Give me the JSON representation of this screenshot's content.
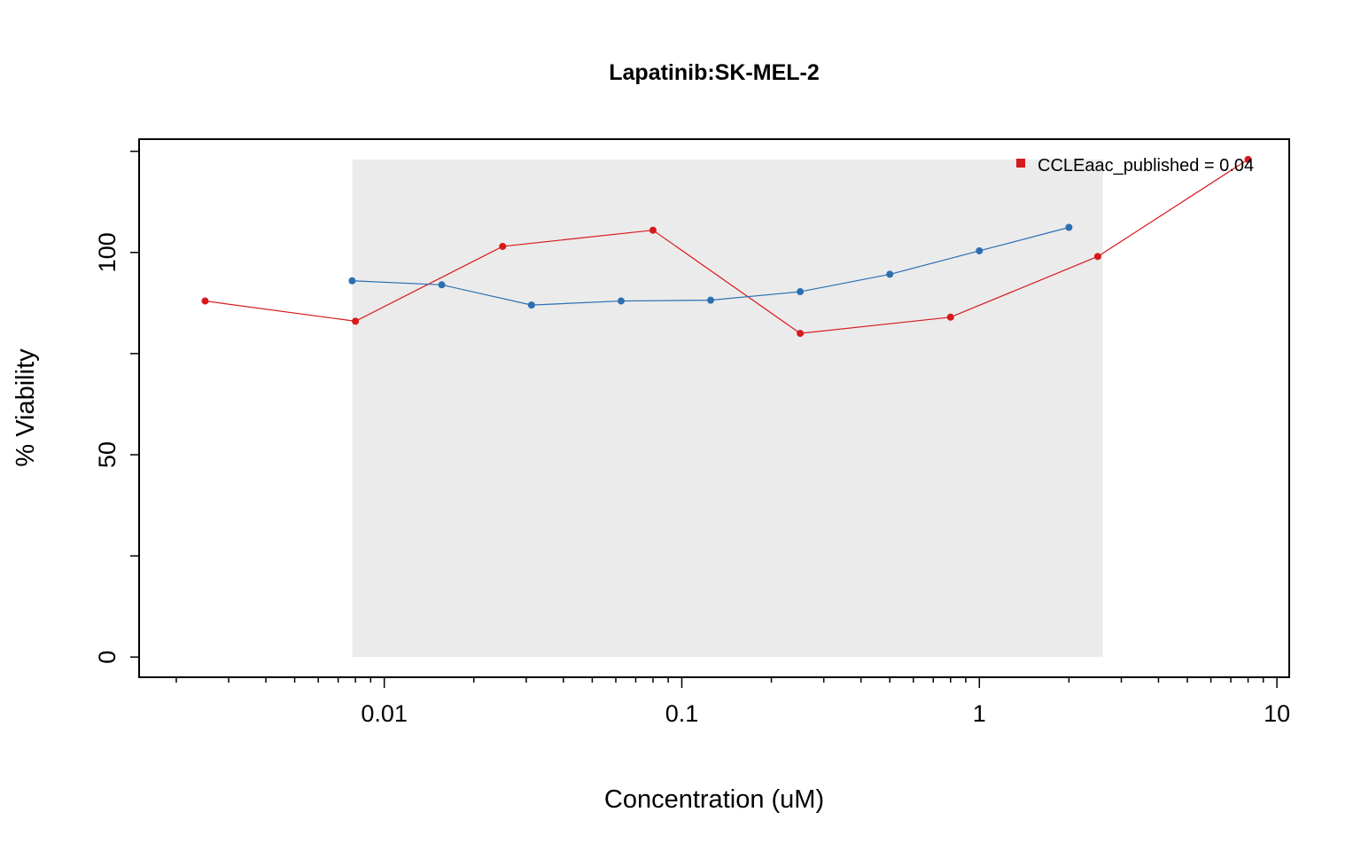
{
  "chart_data": {
    "type": "line",
    "title": "Lapatinib:SK-MEL-2",
    "xlabel": "Concentration (uM)",
    "ylabel": "% Viability",
    "x_scale": "log",
    "xlim": [
      0.0015,
      11
    ],
    "ylim": [
      -5,
      128
    ],
    "x_ticks": [
      0.01,
      0.1,
      1,
      10
    ],
    "x_tick_labels": [
      "0.01",
      "0.1",
      "1",
      "10"
    ],
    "y_ticks": [
      0,
      50,
      100
    ],
    "y_tick_labels": [
      "0",
      "50",
      "100"
    ],
    "grid": false,
    "shaded_range": {
      "x": [
        0.0078,
        2.6
      ],
      "y": [
        0,
        123
      ],
      "color": "#ebebeb"
    },
    "legend": {
      "position": "top-right",
      "entries": [
        {
          "label": "CCLEaac_published = 0.04",
          "color": "#d7191c"
        }
      ]
    },
    "series": [
      {
        "color": "#d7191c",
        "x": [
          0.0025,
          0.008,
          0.025,
          0.08,
          0.25,
          0.8,
          2.5,
          8
        ],
        "y": [
          88,
          83,
          101.5,
          105.5,
          80,
          84,
          99,
          123
        ]
      },
      {
        "color": "#2c6fb3",
        "x": [
          0.0078,
          0.0156,
          0.03125,
          0.0625,
          0.125,
          0.25,
          0.5,
          1,
          2
        ],
        "y": [
          93,
          92,
          87,
          88,
          88.2,
          90.3,
          94.6,
          100.4,
          106.2
        ]
      }
    ]
  }
}
